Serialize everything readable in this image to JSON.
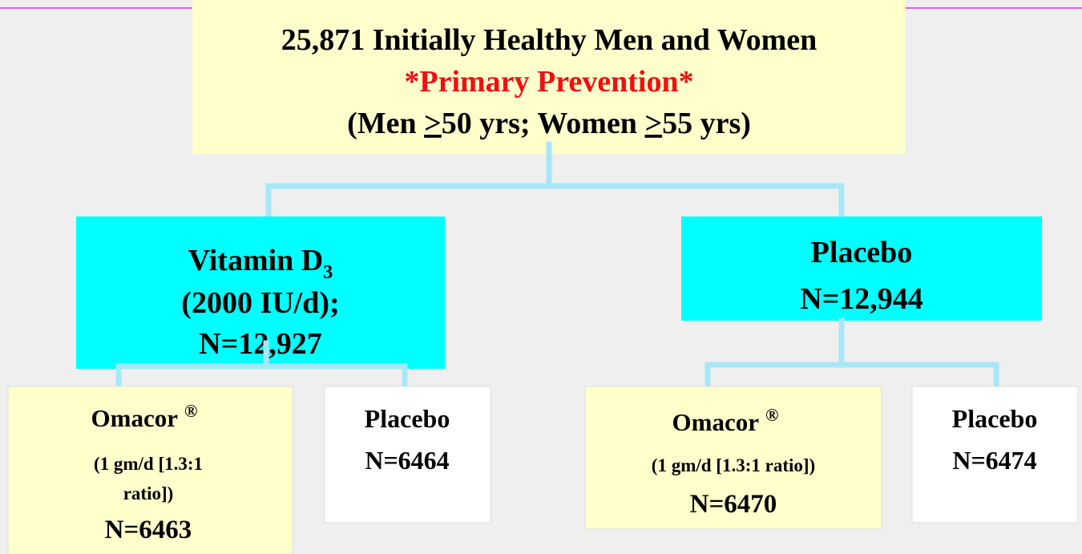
{
  "nodes": [
    {
      "line1": "25,871 Initially Healthy Men and Women",
      "line2": "*Primary Prevention*",
      "line3": [
        "(Men ",
        ">",
        "50 yrs; Women ",
        ">",
        "55 yrs)"
      ]
    },
    {
      "name": "Vitamin D",
      "subscript": "3",
      "dose": "(2000 IU/d);",
      "n": "N=12,927"
    },
    {
      "name": "Placebo",
      "n": "N=12,944"
    },
    {
      "name": "Omacor",
      "mark": "®",
      "dose": [
        "(1 gm/d [1.3:1",
        "ratio])"
      ],
      "n": "N=6463"
    },
    {
      "name": "Placebo",
      "n": "N=6464"
    },
    {
      "name": "Omacor",
      "mark": "®",
      "dose": [
        "(1 gm/d [1.3:1 ratio])"
      ],
      "n": "N=6470"
    },
    {
      "name": "Placebo",
      "n": "N=6474"
    }
  ]
}
